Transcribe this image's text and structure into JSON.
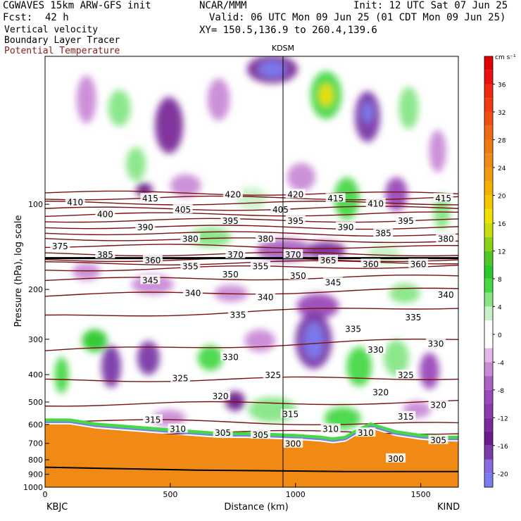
{
  "header": {
    "model": "CGWAVES 15km ARW-GFS init",
    "center": "NCAR/MMM",
    "init": "Init: 12 UTC Sat 07 Jun 25",
    "fcst_label": "Fcst:",
    "fcst_value": "42 h",
    "valid": "Valid: 06 UTC Mon 09 Jun 25 (01 CDT Mon 09 Jun 25)",
    "field1": "Vertical velocity",
    "field2": "Boundary Layer Tracer",
    "field3": "Potential Temperature",
    "xy": "XY= 150.5,136.9 to 260.4,139.6",
    "station_marker": "KDSM",
    "left_station": "KBJC",
    "right_station": "KIND"
  },
  "colors": {
    "theta_line": "#7a1010",
    "terrain": "#f08a14",
    "accent_text": "#8b1a1a"
  },
  "chart_data": {
    "type": "heatmap",
    "xlabel": "Distance (km)",
    "ylabel": "Pressure (hPa), log scale",
    "xlim": [
      0,
      1650
    ],
    "ylim": [
      1000,
      30
    ],
    "x_ticks": [
      "0",
      "500",
      "1000",
      "1500"
    ],
    "y_ticks": [
      "100",
      "200",
      "300",
      "400",
      "500",
      "600",
      "700",
      "800",
      "900",
      "1000"
    ],
    "colorbar": {
      "unit": "cm s⁻¹",
      "tick_labels": [
        "36",
        "32",
        "28",
        "24",
        "20",
        "16",
        "12",
        "8",
        "4",
        "0",
        "-4",
        "-8",
        "-12",
        "-16",
        "-20"
      ],
      "levels": [
        -22,
        -20,
        -18,
        -16,
        -14,
        -12,
        -10,
        -8,
        -6,
        -4,
        -2,
        2,
        4,
        6,
        8,
        10,
        12,
        14,
        16,
        18,
        20,
        22,
        24,
        26,
        28,
        30,
        32,
        34,
        36,
        38,
        40
      ],
      "colors": [
        "#7b7bf0",
        "#8a6ae0",
        "#7a3aa8",
        "#6a1a8a",
        "#7a2a98",
        "#8a3aa8",
        "#9a4ab8",
        "#aa62c2",
        "#c98ad6",
        "#e2b6e8",
        "#ffffff",
        "#c8f0c8",
        "#86e686",
        "#46d846",
        "#2ac82a",
        "#50c828",
        "#8ad214",
        "#c8dc10",
        "#f0e000",
        "#f4c800",
        "#f4b000",
        "#f29a10",
        "#f08a14",
        "#f07a10",
        "#f06810",
        "#f05010",
        "#f03a10",
        "#f02810",
        "#e81010",
        "#e00000"
      ]
    },
    "theta_contours": [
      {
        "label": "300",
        "p_left": 960,
        "p_right": 760
      },
      {
        "label": "305",
        "p_left": 700,
        "p_right": 700
      },
      {
        "label": "310",
        "p_left": 640,
        "p_right": 640
      },
      {
        "label": "315",
        "p_left": 580,
        "p_right": 600
      },
      {
        "label": "320",
        "p_left": 510,
        "p_right": 500
      },
      {
        "label": "325",
        "p_left": 420,
        "p_right": 410
      },
      {
        "label": "330",
        "p_left": 330,
        "p_right": 300
      },
      {
        "label": "335",
        "p_left": 250,
        "p_right": 230
      },
      {
        "label": "340",
        "p_left": 210,
        "p_right": 200
      },
      {
        "label": "345",
        "p_left": 185,
        "p_right": 180
      },
      {
        "label": "350",
        "p_left": 170,
        "p_right": 165
      },
      {
        "label": "355",
        "p_left": 162,
        "p_right": 160
      },
      {
        "label": "360",
        "p_left": 157,
        "p_right": 157
      },
      {
        "label": "370",
        "p_left": 150,
        "p_right": 150
      },
      {
        "label": "375",
        "p_left": 140,
        "p_right": 142
      },
      {
        "label": "380",
        "p_left": 132,
        "p_right": 135
      },
      {
        "label": "385",
        "p_left": 126,
        "p_right": 128
      },
      {
        "label": "390",
        "p_left": 120,
        "p_right": 121
      },
      {
        "label": "395",
        "p_left": 114,
        "p_right": 114
      },
      {
        "label": "400",
        "p_left": 109,
        "p_right": 108
      },
      {
        "label": "405",
        "p_left": 104,
        "p_right": 103
      },
      {
        "label": "410",
        "p_left": 99,
        "p_right": 99
      },
      {
        "label": "415",
        "p_left": 95,
        "p_right": 95
      },
      {
        "label": "420",
        "p_left": 91,
        "p_right": 92
      }
    ],
    "contour_label_positions": [
      {
        "text": "410",
        "x": 120,
        "p": 98
      },
      {
        "text": "415",
        "x": 420,
        "p": 95
      },
      {
        "text": "420",
        "x": 750,
        "p": 92
      },
      {
        "text": "420",
        "x": 1000,
        "p": 92
      },
      {
        "text": "415",
        "x": 1160,
        "p": 95
      },
      {
        "text": "410",
        "x": 1320,
        "p": 99
      },
      {
        "text": "415",
        "x": 1590,
        "p": 95
      },
      {
        "text": "400",
        "x": 240,
        "p": 108
      },
      {
        "text": "405",
        "x": 550,
        "p": 104
      },
      {
        "text": "405",
        "x": 940,
        "p": 104
      },
      {
        "text": "395",
        "x": 1440,
        "p": 114
      },
      {
        "text": "395",
        "x": 1000,
        "p": 114
      },
      {
        "text": "395",
        "x": 740,
        "p": 114
      },
      {
        "text": "390",
        "x": 400,
        "p": 120
      },
      {
        "text": "390",
        "x": 1200,
        "p": 120
      },
      {
        "text": "385",
        "x": 1350,
        "p": 126
      },
      {
        "text": "380",
        "x": 580,
        "p": 132
      },
      {
        "text": "380",
        "x": 880,
        "p": 132
      },
      {
        "text": "380",
        "x": 1600,
        "p": 132
      },
      {
        "text": "375",
        "x": 60,
        "p": 140
      },
      {
        "text": "385",
        "x": 240,
        "p": 150
      },
      {
        "text": "360",
        "x": 430,
        "p": 157
      },
      {
        "text": "370",
        "x": 760,
        "p": 150
      },
      {
        "text": "370",
        "x": 990,
        "p": 150
      },
      {
        "text": "365",
        "x": 1130,
        "p": 157
      },
      {
        "text": "360",
        "x": 1300,
        "p": 162
      },
      {
        "text": "360",
        "x": 1490,
        "p": 162
      },
      {
        "text": "355",
        "x": 580,
        "p": 165
      },
      {
        "text": "355",
        "x": 860,
        "p": 165
      },
      {
        "text": "350",
        "x": 740,
        "p": 176
      },
      {
        "text": "350",
        "x": 1010,
        "p": 178
      },
      {
        "text": "345",
        "x": 420,
        "p": 185
      },
      {
        "text": "345",
        "x": 1150,
        "p": 188
      },
      {
        "text": "340",
        "x": 590,
        "p": 205
      },
      {
        "text": "340",
        "x": 880,
        "p": 212
      },
      {
        "text": "340",
        "x": 1600,
        "p": 208
      },
      {
        "text": "335",
        "x": 770,
        "p": 245
      },
      {
        "text": "335",
        "x": 1230,
        "p": 275
      },
      {
        "text": "335",
        "x": 1470,
        "p": 250
      },
      {
        "text": "330",
        "x": 740,
        "p": 345
      },
      {
        "text": "330",
        "x": 1320,
        "p": 325
      },
      {
        "text": "330",
        "x": 1560,
        "p": 310
      },
      {
        "text": "325",
        "x": 540,
        "p": 410
      },
      {
        "text": "325",
        "x": 910,
        "p": 400
      },
      {
        "text": "325",
        "x": 1440,
        "p": 400
      },
      {
        "text": "320",
        "x": 700,
        "p": 475
      },
      {
        "text": "320",
        "x": 1340,
        "p": 460
      },
      {
        "text": "320",
        "x": 1570,
        "p": 510
      },
      {
        "text": "315",
        "x": 430,
        "p": 575
      },
      {
        "text": "315",
        "x": 980,
        "p": 550
      },
      {
        "text": "315",
        "x": 1440,
        "p": 560
      },
      {
        "text": "310",
        "x": 530,
        "p": 620
      },
      {
        "text": "310",
        "x": 1140,
        "p": 620
      },
      {
        "text": "310",
        "x": 1280,
        "p": 640
      },
      {
        "text": "305",
        "x": 710,
        "p": 640
      },
      {
        "text": "305",
        "x": 860,
        "p": 650
      },
      {
        "text": "305",
        "x": 1570,
        "p": 680
      },
      {
        "text": "300",
        "x": 990,
        "p": 700
      },
      {
        "text": "300",
        "x": 1400,
        "p": 790
      }
    ],
    "station_marker_x": 950
  }
}
